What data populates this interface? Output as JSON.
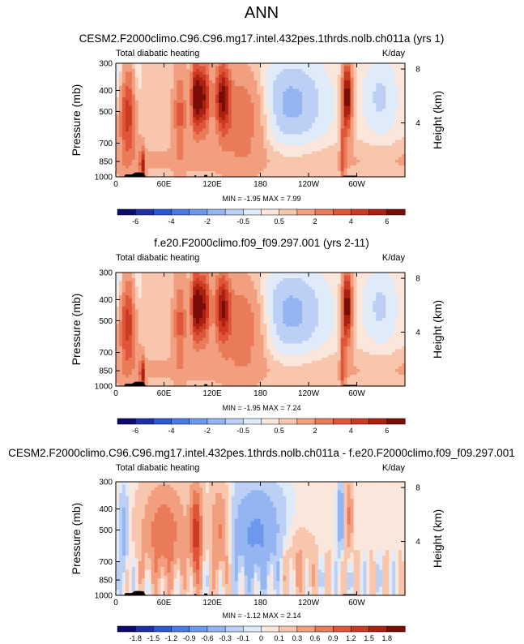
{
  "page_title": "ANN",
  "chart_data": [
    {
      "type": "heatmap",
      "title": "CESM2.F2000climo.C96.C96.mg17.intel.432pes.1thrds.nolb.ch011a (yrs 1)",
      "subtitle_left": "Total diabatic heating",
      "subtitle_right": "K/day",
      "ylabel": "Pressure (mb)",
      "ylabel_right": "Height (km)",
      "x_ticks": [
        "0",
        "60E",
        "120E",
        "180",
        "120W",
        "60W"
      ],
      "x_tick_lon": [
        0,
        60,
        120,
        180,
        240,
        300
      ],
      "xlim": [
        0,
        360
      ],
      "y_ticks": [
        "300",
        "400",
        "500",
        "700",
        "850",
        "1000"
      ],
      "y_tick_p": [
        300,
        400,
        500,
        700,
        850,
        1000
      ],
      "ylim_mb": [
        1000,
        300
      ],
      "y_ticks_right": [
        "8",
        "4"
      ],
      "y_tick_right_km": [
        8,
        4
      ],
      "stats": "MIN = -1.95  MAX = 7.99",
      "min": -1.95,
      "max": 7.99,
      "colorbar_levels": [
        -7,
        -6,
        -5,
        -4,
        -3,
        -2,
        -1,
        -0.5,
        0,
        0.5,
        1,
        2,
        3,
        4,
        5,
        6,
        7
      ],
      "colorbar_labels": [
        "-6",
        "-4",
        "-2",
        "-0.5",
        "0.5",
        "2",
        "4",
        "6"
      ],
      "colorbar_label_at": [
        -6,
        -4,
        -2,
        -0.5,
        0.5,
        2,
        4,
        6
      ]
    },
    {
      "type": "heatmap",
      "title": "f.e20.F2000climo.f09_f09.297.001 (yrs 2-11)",
      "subtitle_left": "Total diabatic heating",
      "subtitle_right": "K/day",
      "ylabel": "Pressure (mb)",
      "ylabel_right": "Height (km)",
      "x_ticks": [
        "0",
        "60E",
        "120E",
        "180",
        "120W",
        "60W"
      ],
      "x_tick_lon": [
        0,
        60,
        120,
        180,
        240,
        300
      ],
      "xlim": [
        0,
        360
      ],
      "y_ticks": [
        "300",
        "400",
        "500",
        "700",
        "850",
        "1000"
      ],
      "y_tick_p": [
        300,
        400,
        500,
        700,
        850,
        1000
      ],
      "ylim_mb": [
        1000,
        300
      ],
      "y_ticks_right": [
        "8",
        "4"
      ],
      "y_tick_right_km": [
        8,
        4
      ],
      "stats": "MIN = -1.95  MAX = 7.24",
      "min": -1.95,
      "max": 7.24,
      "colorbar_levels": [
        -7,
        -6,
        -5,
        -4,
        -3,
        -2,
        -1,
        -0.5,
        0,
        0.5,
        1,
        2,
        3,
        4,
        5,
        6,
        7
      ],
      "colorbar_labels": [
        "-6",
        "-4",
        "-2",
        "-0.5",
        "0.5",
        "2",
        "4",
        "6"
      ],
      "colorbar_label_at": [
        -6,
        -4,
        -2,
        -0.5,
        0.5,
        2,
        4,
        6
      ]
    },
    {
      "type": "heatmap",
      "title": "CESM2.F2000climo.C96.C96.mg17.intel.432pes.1thrds.nolb.ch011a - f.e20.F2000climo.f09_f09.297.001",
      "subtitle_left": "Total diabatic heating",
      "subtitle_right": "K/day",
      "ylabel": "Pressure (mb)",
      "ylabel_right": "Height (km)",
      "x_ticks": [
        "0",
        "60E",
        "120E",
        "180",
        "120W",
        "60W"
      ],
      "x_tick_lon": [
        0,
        60,
        120,
        180,
        240,
        300
      ],
      "xlim": [
        0,
        360
      ],
      "y_ticks": [
        "300",
        "400",
        "500",
        "700",
        "850",
        "1000"
      ],
      "y_tick_p": [
        300,
        400,
        500,
        700,
        850,
        1000
      ],
      "ylim_mb": [
        1000,
        300
      ],
      "y_ticks_right": [
        "8",
        "4"
      ],
      "y_tick_right_km": [
        8,
        4
      ],
      "stats": "MIN = -1.12  MAX = 2.14",
      "min": -1.12,
      "max": 2.14,
      "colorbar_levels": [
        -2.1,
        -1.8,
        -1.5,
        -1.2,
        -0.9,
        -0.6,
        -0.3,
        -0.1,
        0,
        0.1,
        0.3,
        0.6,
        0.9,
        1.2,
        1.5,
        1.8,
        2.1
      ],
      "colorbar_labels": [
        "-1.8",
        "-1.5",
        "-1.2",
        "-0.9",
        "-0.6",
        "-0.3",
        "-0.1",
        "0",
        "0.1",
        "0.3",
        "0.6",
        "0.9",
        "1.2",
        "1.5",
        "1.8"
      ],
      "colorbar_label_at": [
        -1.8,
        -1.5,
        -1.2,
        -0.9,
        -0.6,
        -0.3,
        -0.1,
        0,
        0.1,
        0.3,
        0.6,
        0.9,
        1.2,
        1.5,
        1.8
      ]
    }
  ],
  "colors": {
    "palette": [
      "#0b0b6e",
      "#1f2fa8",
      "#2c58d8",
      "#4a7ae8",
      "#6d98ee",
      "#94b4f2",
      "#bcd0f6",
      "#e0ebfa",
      "#fbe6dc",
      "#f7c6ad",
      "#f29f80",
      "#ea7b58",
      "#e0553a",
      "#cc3a22",
      "#aa2012",
      "#7a0d06"
    ],
    "terrain": "#000000"
  }
}
